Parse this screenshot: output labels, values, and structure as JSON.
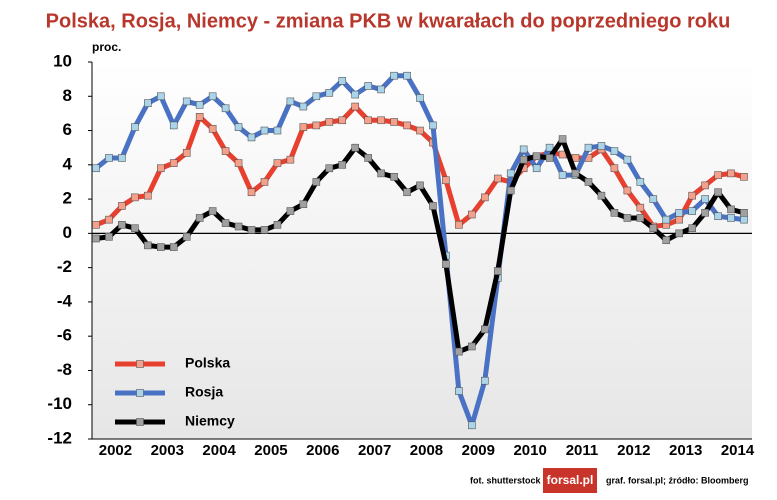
{
  "chart_data": {
    "type": "line",
    "title": "Polska, Rosja, Niemcy - zmiana PKB w kwarałach do poprzedniego roku",
    "y_label": "proc.",
    "categories": [
      null,
      "2002",
      null,
      null,
      null,
      "2003",
      null,
      null,
      null,
      "2004",
      null,
      null,
      null,
      "2005",
      null,
      null,
      null,
      "2006",
      null,
      null,
      null,
      "2007",
      null,
      null,
      null,
      "2008",
      null,
      null,
      null,
      "2009",
      null,
      null,
      null,
      "2010",
      null,
      null,
      null,
      "2011",
      null,
      null,
      null,
      "2012",
      null,
      null,
      null,
      "2013",
      null,
      null,
      null,
      "2014",
      null
    ],
    "series": [
      {
        "name": "Polska",
        "color": "#e8402f",
        "marker_color": "#f4a08a",
        "values": [
          0.5,
          0.8,
          1.6,
          2.1,
          2.2,
          3.8,
          4.1,
          4.7,
          6.8,
          6.1,
          4.8,
          4.1,
          2.4,
          3.0,
          4.1,
          4.3,
          6.2,
          6.3,
          6.5,
          6.6,
          7.4,
          6.6,
          6.6,
          6.5,
          6.3,
          6.0,
          5.3,
          3.1,
          0.5,
          1.1,
          2.1,
          3.2,
          3.0,
          3.8,
          4.5,
          4.7,
          4.6,
          4.4,
          4.4,
          4.9,
          3.8,
          2.5,
          1.5,
          0.4,
          0.5,
          0.8,
          2.2,
          2.8,
          3.4,
          3.5,
          3.3
        ]
      },
      {
        "name": "Rosja",
        "color": "#4a72c4",
        "marker_color": "#a9d4ea",
        "values": [
          3.8,
          4.4,
          4.4,
          6.2,
          7.6,
          8.0,
          6.3,
          7.7,
          7.5,
          8.0,
          7.3,
          6.2,
          5.6,
          6.0,
          6.0,
          7.7,
          7.4,
          8.0,
          8.2,
          8.9,
          8.1,
          8.6,
          8.4,
          9.2,
          9.2,
          7.9,
          6.3,
          -1.3,
          -9.2,
          -11.2,
          -8.6,
          -2.6,
          3.5,
          4.9,
          3.8,
          5.0,
          3.4,
          3.4,
          5.0,
          5.1,
          4.8,
          4.3,
          3.0,
          2.0,
          0.8,
          1.2,
          1.3,
          2.0,
          1.0,
          0.9,
          0.8
        ]
      },
      {
        "name": "Niemcy",
        "color": "#000000",
        "marker_color": "#a0a0a0",
        "values": [
          -0.3,
          -0.2,
          0.5,
          0.3,
          -0.7,
          -0.8,
          -0.8,
          -0.2,
          0.9,
          1.3,
          0.6,
          0.4,
          0.2,
          0.2,
          0.5,
          1.3,
          1.7,
          3.0,
          3.8,
          4.0,
          5.0,
          4.4,
          3.5,
          3.3,
          2.4,
          2.8,
          1.6,
          -1.8,
          -6.9,
          -6.6,
          -5.6,
          -2.2,
          2.5,
          4.3,
          4.5,
          4.4,
          5.5,
          3.5,
          3.0,
          2.2,
          1.2,
          0.9,
          0.9,
          0.3,
          -0.4,
          0.0,
          0.3,
          1.2,
          2.4,
          1.4,
          1.2
        ]
      }
    ],
    "ylim": [
      -12,
      10
    ],
    "yticks": [
      -12,
      -10,
      -8,
      -6,
      -4,
      -2,
      0,
      2,
      4,
      6,
      8,
      10
    ],
    "legend": "lower-left"
  },
  "footer": {
    "photo": "fot. shutterstock",
    "logo": "forsal.pl",
    "source": "graf. forsal.pl;  źródło: Bloomberg"
  }
}
